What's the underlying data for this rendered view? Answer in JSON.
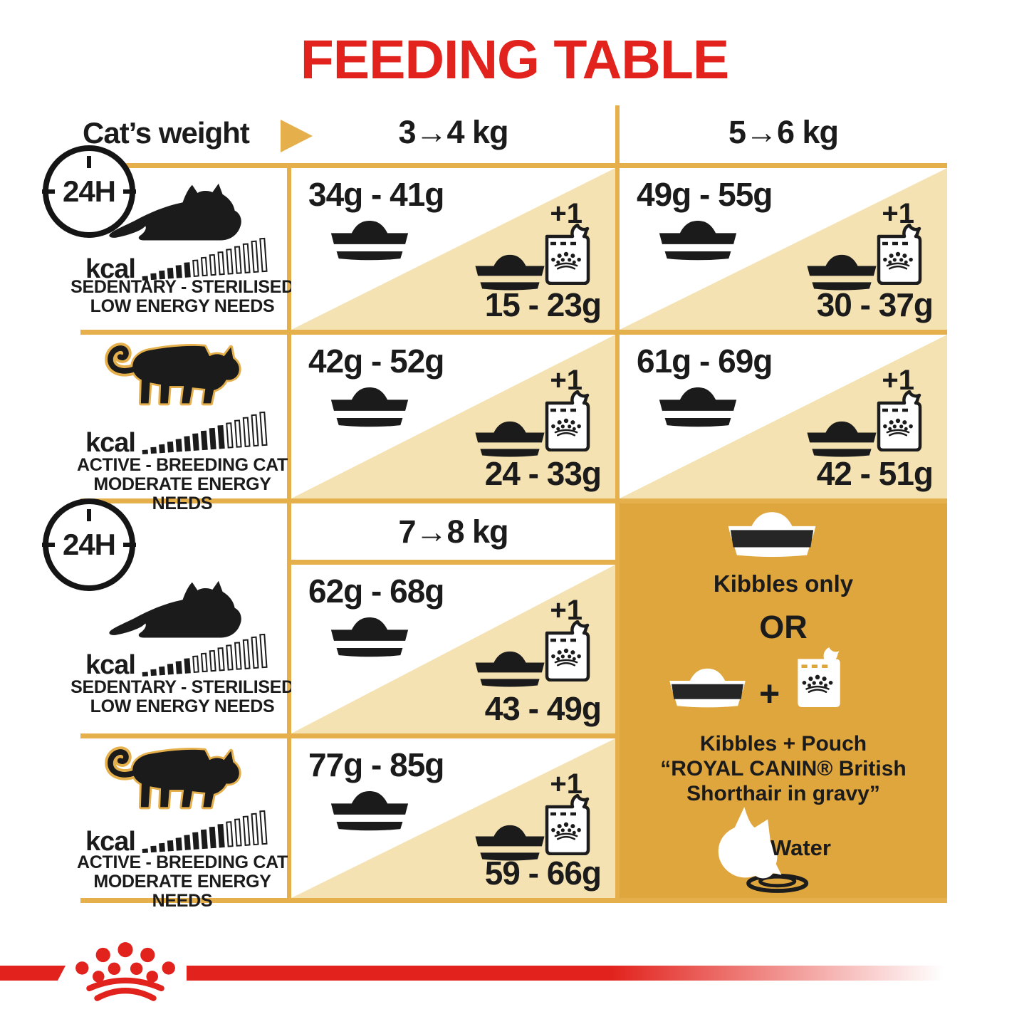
{
  "title": "FEEDING TABLE",
  "clock_label": "24H",
  "header": {
    "row_label": "Cat’s weight",
    "col_3_4": "3→4 kg",
    "col_5_6": "5→6 kg",
    "col_7_8": "7→8 kg"
  },
  "profiles": {
    "sedentary": {
      "kcal": "kcal",
      "line1": "SEDENTARY - STERILISED",
      "line2": "LOW ENERGY NEEDS",
      "bars_total": 15,
      "bars_filled": 6
    },
    "active": {
      "kcal": "kcal",
      "line1": "ACTIVE - BREEDING CAT",
      "line2": "MODERATE ENERGY NEEDS",
      "bars_total": 15,
      "bars_filled": 10
    }
  },
  "cells": {
    "w3_4": {
      "sedentary": {
        "kibbles": "34g - 41g",
        "plus": "+1",
        "mixed": "15 - 23g"
      },
      "active": {
        "kibbles": "42g - 52g",
        "plus": "+1",
        "mixed": "24 - 33g"
      }
    },
    "w5_6": {
      "sedentary": {
        "kibbles": "49g - 55g",
        "plus": "+1",
        "mixed": "30 - 37g"
      },
      "active": {
        "kibbles": "61g - 69g",
        "plus": "+1",
        "mixed": "42 - 51g"
      }
    },
    "w7_8": {
      "sedentary": {
        "kibbles": "62g - 68g",
        "plus": "+1",
        "mixed": "43 - 49g"
      },
      "active": {
        "kibbles": "77g - 85g",
        "plus": "+1",
        "mixed": "59 - 66g"
      }
    }
  },
  "panel": {
    "kibbles_only": "Kibbles only",
    "or": "OR",
    "plus": "+",
    "mixed_line1": "Kibbles + Pouch",
    "mixed_line2": "“ROYAL CANIN® British",
    "mixed_line3": "Shorthair in gravy”",
    "water": "Water"
  },
  "icons": {
    "clock": "24h-dial-circle",
    "weight_arrow": "gold-right-triangle",
    "sedentary_cat": "lying-cat-silhouette",
    "active_cat": "walking-cat-silhouette-gold-outline",
    "kibbles_bowl": "food-bowl",
    "pouch": "wet-food-pouch-with-crown",
    "brand_logo": "royal-canin-paw-crown",
    "hydration": "cat-drinking-from-dish"
  },
  "colors": {
    "red": "#E2231D",
    "gold": "#E5AF4B",
    "gold_panel": "#DFA63E",
    "tan": "#F5E2B2",
    "black": "#1B1B1B"
  }
}
